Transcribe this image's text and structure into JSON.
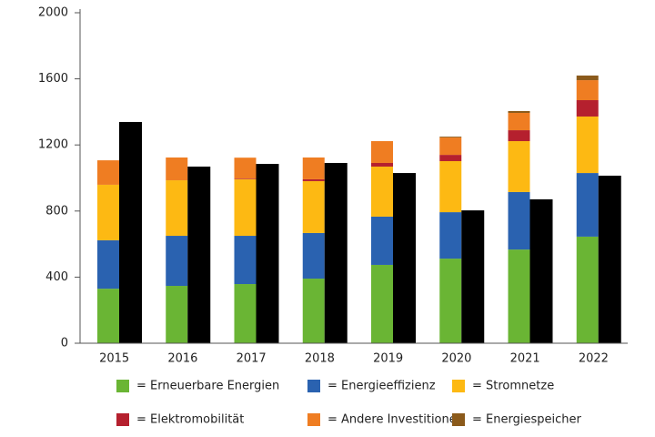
{
  "chart_data": {
    "type": "bar",
    "stacked": true,
    "categories": [
      "2015",
      "2016",
      "2017",
      "2018",
      "2019",
      "2020",
      "2021",
      "2022"
    ],
    "series": [
      {
        "name": "= Erneuerbare Energien",
        "color": "#6ab534",
        "values": [
          330,
          347,
          358,
          391,
          474,
          512,
          567,
          645
        ]
      },
      {
        "name": "= Energieeffizienz",
        "color": "#2a62b0",
        "values": [
          293,
          303,
          292,
          276,
          292,
          281,
          348,
          385
        ]
      },
      {
        "name": "= Stromnetze",
        "color": "#fdb913",
        "values": [
          336,
          336,
          342,
          314,
          303,
          309,
          308,
          342
        ]
      },
      {
        "name": "= Elektromobilität",
        "color": "#b5202e",
        "values": [
          0,
          0,
          4,
          11,
          22,
          38,
          66,
          99
        ]
      },
      {
        "name": "= Andere Investitionen",
        "color": "#ef7d22",
        "values": [
          148,
          138,
          127,
          132,
          132,
          105,
          105,
          121
        ]
      },
      {
        "name": "= Energiespeicher",
        "color": "#8b5a1b",
        "values": [
          0,
          0,
          0,
          0,
          0,
          5,
          11,
          28
        ]
      }
    ],
    "comparison": {
      "color": "#000000",
      "values": [
        1339,
        1069,
        1085,
        1091,
        1030,
        804,
        871,
        1014
      ]
    },
    "ylim": [
      0,
      2000
    ],
    "yticks": [
      0,
      400,
      800,
      1200,
      1600,
      2000
    ]
  }
}
